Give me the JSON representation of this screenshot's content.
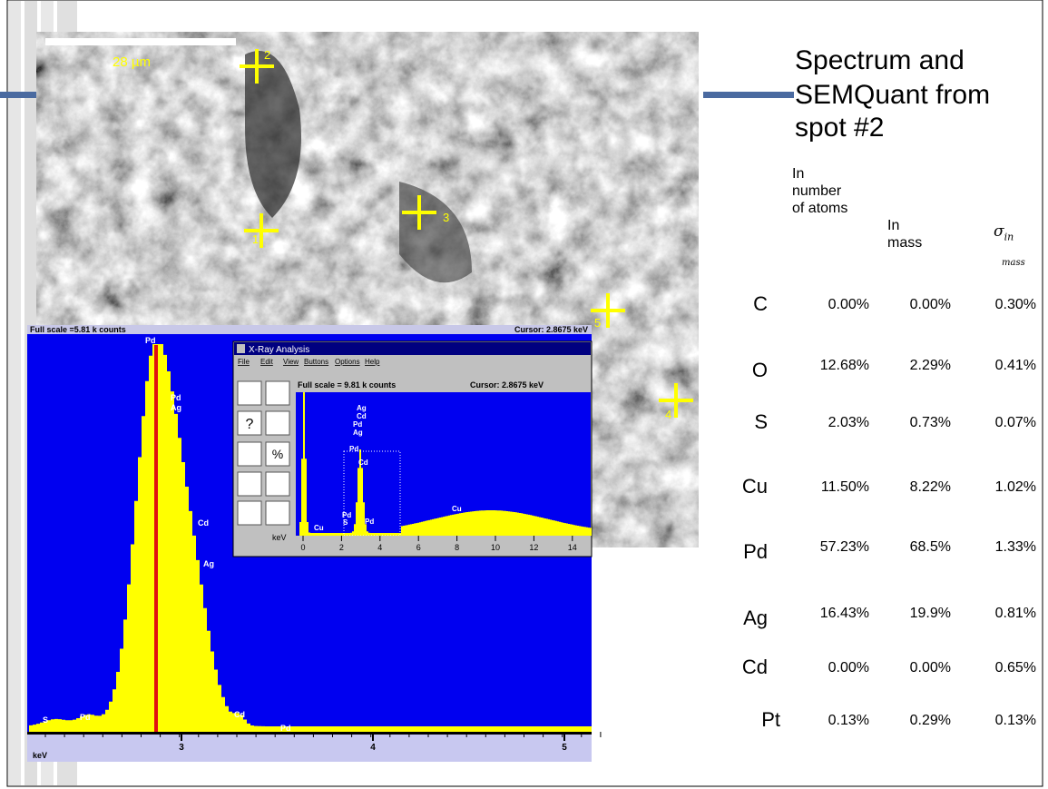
{
  "slide": {
    "title_lines": [
      "Spectrum and",
      "SEMQuant from",
      "spot #2"
    ]
  },
  "sem_image": {
    "scale_bar": "28 µm",
    "spots": [
      "1",
      "2",
      "3",
      "4",
      "5"
    ]
  },
  "spectrum": {
    "full_scale": "Full scale =5.81 k counts",
    "cursor": "Cursor: 2.8675 keV",
    "peak_labels": [
      "Pd",
      "Pd",
      "Ag",
      "Cd",
      "Ag",
      "S",
      "Pd",
      "Cd",
      "Pd"
    ],
    "axis_ticks": [
      "3",
      "4",
      "5"
    ],
    "axis_unit": "keV"
  },
  "inset": {
    "title": "X-Ray Analysis",
    "menu": [
      "File",
      "Edit",
      "View",
      "Buttons",
      "Options",
      "Help"
    ],
    "full_scale": "Full scale = 9.81 k counts",
    "cursor": "Cursor:  2.8675 keV",
    "tool_symbols": [
      "?",
      "%"
    ],
    "peak_labels": [
      "Ag",
      "Cd",
      "Pd",
      "Ag",
      "Pd",
      "Cd",
      "Pd",
      "S",
      "Pd",
      "Cu",
      "Cu"
    ],
    "axis_unit": "keV",
    "axis_ticks": [
      "0",
      "2",
      "4",
      "6",
      "8",
      "10",
      "12",
      "14"
    ]
  },
  "table": {
    "header": {
      "atoms": "In number of atoms",
      "mass": "In mass",
      "sigma": "σ",
      "sigma_sub": "in",
      "sigma_below": "mass"
    },
    "rows": [
      [
        "C",
        "0.00%",
        "0.00%",
        "0.30%"
      ],
      [
        "O",
        "12.68%",
        "2.29%",
        "0.41%"
      ],
      [
        "S",
        "2.03%",
        "0.73%",
        "0.07%"
      ],
      [
        "Cu",
        "11.50%",
        "8.22%",
        "1.02%"
      ],
      [
        "Pd",
        "57.23%",
        "68.5%",
        "1.33%"
      ],
      [
        "Ag",
        "16.43%",
        "19.9%",
        "0.81%"
      ],
      [
        "Cd",
        "0.00%",
        "0.00%",
        "0.65%"
      ],
      [
        "Pt",
        "0.13%",
        "0.29%",
        "0.13%"
      ]
    ]
  }
}
